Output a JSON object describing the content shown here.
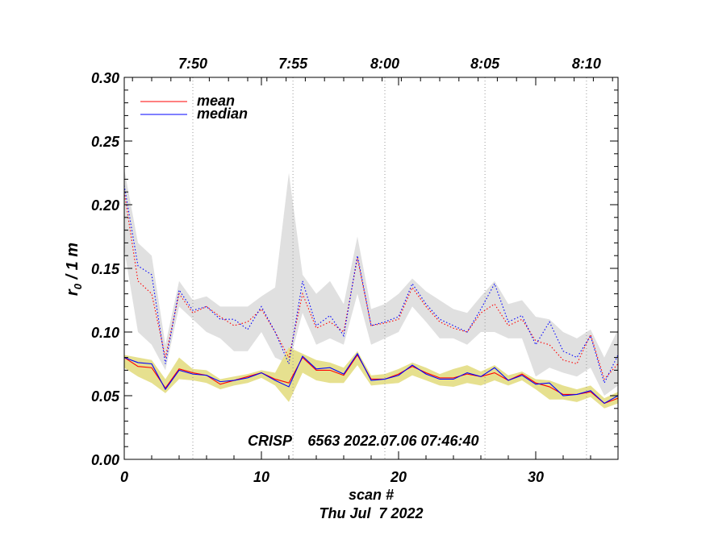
{
  "chart_data": {
    "type": "line",
    "title": "",
    "xlabel": "scan #",
    "date_label": "Thu Jul  7 2022",
    "ylabel_main": "r",
    "ylabel_sub": "0",
    "ylabel_rest": " / 1 m",
    "annotation": "CRISP    6563 2022.07.06 07:46:40",
    "xlim": [
      0,
      36
    ],
    "ylim": [
      0,
      0.3
    ],
    "x_ticks": [
      0,
      10,
      20,
      30
    ],
    "x_tick_labels": [
      "0",
      "10",
      "20",
      "30"
    ],
    "y_ticks": [
      0.0,
      0.05,
      0.1,
      0.15,
      0.2,
      0.25,
      0.3
    ],
    "y_tick_labels": [
      "0.00",
      "0.05",
      "0.10",
      "0.15",
      "0.20",
      "0.25",
      "0.30"
    ],
    "time_ticks": [
      {
        "scan": 5.0,
        "label": "7:50"
      },
      {
        "scan": 12.3,
        "label": "7:55"
      },
      {
        "scan": 19.0,
        "label": "8:00"
      },
      {
        "scan": 26.3,
        "label": "8:05"
      },
      {
        "scan": 33.7,
        "label": "8:10"
      }
    ],
    "legend": [
      {
        "name": "mean",
        "color": "#ff0000"
      },
      {
        "name": "median",
        "color": "#0000ff"
      }
    ],
    "colors": {
      "mean": "#ff0000",
      "median": "#0000ff",
      "band_low": "#e6e08f",
      "band_high": "#e0e0e0",
      "grid": "#999999"
    },
    "x": [
      0,
      1,
      2,
      3,
      4,
      5,
      6,
      7,
      8,
      9,
      10,
      11,
      12,
      13,
      14,
      15,
      16,
      17,
      18,
      19,
      20,
      21,
      22,
      23,
      24,
      25,
      26,
      27,
      28,
      29,
      30,
      31,
      32,
      33,
      34,
      35,
      36
    ],
    "series": [
      {
        "name": "mean (high)",
        "style": "dotted",
        "color": "#ff0000",
        "values": [
          0.21,
          0.14,
          0.13,
          0.08,
          0.13,
          0.115,
          0.12,
          0.112,
          0.105,
          0.108,
          0.118,
          0.1,
          0.08,
          0.13,
          0.103,
          0.108,
          0.1,
          0.158,
          0.105,
          0.107,
          0.11,
          0.135,
          0.12,
          0.108,
          0.103,
          0.1,
          0.115,
          0.122,
          0.105,
          0.11,
          0.093,
          0.09,
          0.078,
          0.075,
          0.098,
          0.063,
          0.075
        ]
      },
      {
        "name": "median (high)",
        "style": "dotted",
        "color": "#0000ff",
        "values": [
          0.215,
          0.152,
          0.145,
          0.075,
          0.133,
          0.117,
          0.12,
          0.11,
          0.11,
          0.102,
          0.12,
          0.1,
          0.075,
          0.14,
          0.105,
          0.113,
          0.097,
          0.16,
          0.105,
          0.108,
          0.112,
          0.138,
          0.122,
          0.11,
          0.105,
          0.1,
          0.118,
          0.138,
          0.108,
          0.113,
          0.09,
          0.108,
          0.085,
          0.08,
          0.097,
          0.06,
          0.082
        ]
      },
      {
        "name": "mean",
        "style": "solid",
        "color": "#ff0000",
        "values": [
          0.08,
          0.073,
          0.072,
          0.056,
          0.071,
          0.068,
          0.066,
          0.059,
          0.062,
          0.065,
          0.068,
          0.063,
          0.06,
          0.08,
          0.07,
          0.07,
          0.066,
          0.082,
          0.063,
          0.063,
          0.067,
          0.073,
          0.068,
          0.064,
          0.064,
          0.067,
          0.065,
          0.068,
          0.062,
          0.067,
          0.06,
          0.057,
          0.051,
          0.051,
          0.053,
          0.044,
          0.048
        ]
      },
      {
        "name": "median",
        "style": "solid",
        "color": "#0000ff",
        "values": [
          0.08,
          0.076,
          0.075,
          0.055,
          0.07,
          0.067,
          0.066,
          0.061,
          0.062,
          0.064,
          0.068,
          0.062,
          0.057,
          0.081,
          0.071,
          0.072,
          0.067,
          0.083,
          0.062,
          0.063,
          0.066,
          0.074,
          0.067,
          0.063,
          0.063,
          0.068,
          0.065,
          0.072,
          0.062,
          0.066,
          0.059,
          0.06,
          0.05,
          0.051,
          0.054,
          0.044,
          0.05
        ]
      }
    ],
    "bands": [
      {
        "name": "high band",
        "color": "#e0e0e0",
        "upper": [
          0.228,
          0.17,
          0.16,
          0.09,
          0.14,
          0.125,
          0.128,
          0.12,
          0.12,
          0.12,
          0.128,
          0.135,
          0.225,
          0.145,
          0.13,
          0.14,
          0.122,
          0.175,
          0.118,
          0.122,
          0.13,
          0.142,
          0.132,
          0.125,
          0.118,
          0.115,
          0.128,
          0.14,
          0.122,
          0.125,
          0.112,
          0.11,
          0.1,
          0.095,
          0.102,
          0.08,
          0.102
        ],
        "lower": [
          0.165,
          0.1,
          0.09,
          0.07,
          0.12,
          0.11,
          0.1,
          0.095,
          0.085,
          0.085,
          0.1,
          0.08,
          0.075,
          0.115,
          0.09,
          0.095,
          0.09,
          0.13,
          0.09,
          0.095,
          0.1,
          0.12,
          0.108,
          0.095,
          0.095,
          0.09,
          0.1,
          0.1,
          0.095,
          0.095,
          0.065,
          0.072,
          0.068,
          0.065,
          0.072,
          0.05,
          0.058
        ]
      },
      {
        "name": "low band",
        "color": "#e6e08f",
        "upper": [
          0.082,
          0.08,
          0.078,
          0.063,
          0.08,
          0.071,
          0.07,
          0.063,
          0.065,
          0.067,
          0.07,
          0.068,
          0.088,
          0.083,
          0.078,
          0.076,
          0.072,
          0.085,
          0.066,
          0.067,
          0.071,
          0.076,
          0.072,
          0.067,
          0.071,
          0.074,
          0.069,
          0.074,
          0.066,
          0.069,
          0.063,
          0.062,
          0.058,
          0.055,
          0.058,
          0.048,
          0.053
        ]
      },
      {
        "name": "low band lower",
        "color": "#e6e08f",
        "lower": [
          0.072,
          0.065,
          0.06,
          0.052,
          0.063,
          0.062,
          0.06,
          0.055,
          0.058,
          0.06,
          0.064,
          0.058,
          0.045,
          0.068,
          0.062,
          0.06,
          0.06,
          0.074,
          0.058,
          0.059,
          0.06,
          0.066,
          0.062,
          0.058,
          0.057,
          0.06,
          0.058,
          0.062,
          0.058,
          0.062,
          0.055,
          0.047,
          0.047,
          0.045,
          0.049,
          0.04,
          0.044
        ]
      }
    ]
  }
}
